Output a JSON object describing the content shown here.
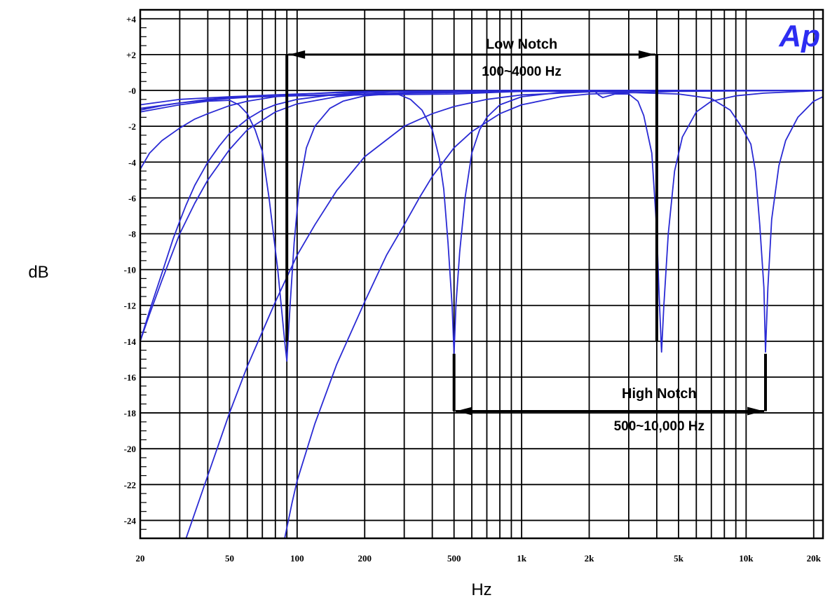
{
  "chart_data": {
    "type": "line",
    "x_scale": "log",
    "xlim": [
      20,
      22000
    ],
    "ylim": [
      -25,
      4.5
    ],
    "xlabel": "Hz",
    "ylabel": "dB",
    "x_ticks": [
      {
        "value": 20,
        "label": "20"
      },
      {
        "value": 50,
        "label": "50"
      },
      {
        "value": 100,
        "label": "100"
      },
      {
        "value": 200,
        "label": "200"
      },
      {
        "value": 500,
        "label": "500"
      },
      {
        "value": 1000,
        "label": "1k"
      },
      {
        "value": 2000,
        "label": "2k"
      },
      {
        "value": 5000,
        "label": "5k"
      },
      {
        "value": 10000,
        "label": "10k"
      },
      {
        "value": 20000,
        "label": "20k"
      }
    ],
    "y_ticks": [
      {
        "value": 4,
        "label": "+4"
      },
      {
        "value": 2,
        "label": "+2"
      },
      {
        "value": 0,
        "label": "-0"
      },
      {
        "value": -2,
        "label": "-2"
      },
      {
        "value": -4,
        "label": "-4"
      },
      {
        "value": -6,
        "label": "-6"
      },
      {
        "value": -8,
        "label": "-8"
      },
      {
        "value": -10,
        "label": "-10"
      },
      {
        "value": -12,
        "label": "-12"
      },
      {
        "value": -14,
        "label": "-14"
      },
      {
        "value": -16,
        "label": "-16"
      },
      {
        "value": -18,
        "label": "-18"
      },
      {
        "value": -20,
        "label": "-20"
      },
      {
        "value": -22,
        "label": "-22"
      },
      {
        "value": -24,
        "label": "-24"
      }
    ],
    "grid": true,
    "series_color": "#2a2ad4",
    "series": [
      {
        "points": [
          [
            20,
            -4.4
          ],
          [
            22,
            -3.5
          ],
          [
            25,
            -2.8
          ],
          [
            30,
            -2.1
          ],
          [
            35,
            -1.6
          ],
          [
            40,
            -1.3
          ],
          [
            50,
            -0.85
          ],
          [
            60,
            -0.6
          ],
          [
            80,
            -0.35
          ],
          [
            100,
            -0.22
          ],
          [
            150,
            -0.1
          ],
          [
            200,
            -0.05
          ],
          [
            500,
            -0.01
          ],
          [
            1000,
            0
          ],
          [
            22000,
            0
          ]
        ]
      },
      {
        "points": [
          [
            20,
            -14.0
          ],
          [
            22,
            -12.3
          ],
          [
            25,
            -10.2
          ],
          [
            28,
            -8.3
          ],
          [
            30,
            -7.3
          ],
          [
            32,
            -6.4
          ],
          [
            35,
            -5.3
          ],
          [
            40,
            -4.0
          ],
          [
            45,
            -3.1
          ],
          [
            50,
            -2.4
          ],
          [
            60,
            -1.6
          ],
          [
            70,
            -1.1
          ],
          [
            80,
            -0.8
          ],
          [
            100,
            -0.5
          ],
          [
            150,
            -0.22
          ],
          [
            200,
            -0.12
          ],
          [
            300,
            -0.05
          ],
          [
            500,
            -0.02
          ],
          [
            1000,
            0
          ],
          [
            22000,
            0
          ]
        ]
      },
      {
        "points": [
          [
            20,
            -1.2
          ],
          [
            30,
            -0.8
          ],
          [
            40,
            -0.6
          ],
          [
            50,
            -0.55
          ],
          [
            55,
            -0.8
          ],
          [
            60,
            -1.3
          ],
          [
            65,
            -2.2
          ],
          [
            70,
            -3.4
          ],
          [
            75,
            -6.0
          ],
          [
            82,
            -10.0
          ],
          [
            88,
            -14.0
          ],
          [
            90,
            -15.1
          ],
          [
            93,
            -12.0
          ],
          [
            97,
            -8.5
          ],
          [
            102,
            -5.5
          ],
          [
            110,
            -3.2
          ],
          [
            120,
            -2.0
          ],
          [
            140,
            -1.0
          ],
          [
            160,
            -0.6
          ],
          [
            200,
            -0.3
          ],
          [
            300,
            -0.12
          ],
          [
            500,
            -0.05
          ],
          [
            1000,
            0
          ],
          [
            22000,
            0
          ]
        ]
      },
      {
        "points": [
          [
            20,
            -0.8
          ],
          [
            30,
            -0.5
          ],
          [
            50,
            -0.35
          ],
          [
            100,
            -0.2
          ],
          [
            200,
            -0.08
          ],
          [
            280,
            -0.2
          ],
          [
            320,
            -0.5
          ],
          [
            360,
            -1.1
          ],
          [
            400,
            -2.2
          ],
          [
            430,
            -3.8
          ],
          [
            450,
            -5.5
          ],
          [
            470,
            -8.5
          ],
          [
            490,
            -12.0
          ],
          [
            500,
            -14.7
          ],
          [
            510,
            -12.0
          ],
          [
            530,
            -9.0
          ],
          [
            560,
            -6.0
          ],
          [
            600,
            -3.5
          ],
          [
            650,
            -2.2
          ],
          [
            700,
            -1.5
          ],
          [
            800,
            -0.8
          ],
          [
            1000,
            -0.35
          ],
          [
            1500,
            -0.1
          ],
          [
            2000,
            -0.03
          ],
          [
            22000,
            0
          ]
        ]
      },
      {
        "points": [
          [
            20,
            -1.0
          ],
          [
            30,
            -0.7
          ],
          [
            40,
            -0.5
          ],
          [
            50,
            -0.4
          ],
          [
            70,
            -0.35
          ],
          [
            100,
            -0.3
          ],
          [
            200,
            -0.25
          ],
          [
            500,
            -0.2
          ],
          [
            1000,
            -0.05
          ],
          [
            1500,
            0
          ],
          [
            2100,
            0
          ],
          [
            2200,
            -0.25
          ],
          [
            2300,
            -0.4
          ],
          [
            2600,
            -0.2
          ],
          [
            3000,
            -0.2
          ],
          [
            3300,
            -0.6
          ],
          [
            3500,
            -1.4
          ],
          [
            3800,
            -3.5
          ],
          [
            4000,
            -7.8
          ],
          [
            4100,
            -11.5
          ],
          [
            4200,
            -14.6
          ],
          [
            4300,
            -12.0
          ],
          [
            4500,
            -8.0
          ],
          [
            4800,
            -4.5
          ],
          [
            5200,
            -2.6
          ],
          [
            6000,
            -1.2
          ],
          [
            7000,
            -0.6
          ],
          [
            9000,
            -0.3
          ],
          [
            12000,
            -0.15
          ],
          [
            22000,
            0
          ]
        ]
      },
      {
        "points": [
          [
            20,
            -1.1
          ],
          [
            25,
            -0.85
          ],
          [
            30,
            -0.7
          ],
          [
            40,
            -0.55
          ],
          [
            50,
            -0.45
          ],
          [
            60,
            -0.38
          ],
          [
            80,
            -0.32
          ],
          [
            100,
            -0.28
          ],
          [
            200,
            -0.2
          ],
          [
            500,
            -0.12
          ],
          [
            1000,
            -0.05
          ],
          [
            2000,
            -0.05
          ],
          [
            5000,
            -0.2
          ],
          [
            7000,
            -0.45
          ],
          [
            8500,
            -1.1
          ],
          [
            9500,
            -2.0
          ],
          [
            10500,
            -3.0
          ],
          [
            11000,
            -4.5
          ],
          [
            11500,
            -7.5
          ],
          [
            12000,
            -11.0
          ],
          [
            12200,
            -14.6
          ],
          [
            12500,
            -11.0
          ],
          [
            13000,
            -7.2
          ],
          [
            14000,
            -4.2
          ],
          [
            15000,
            -2.8
          ],
          [
            17000,
            -1.5
          ],
          [
            20000,
            -0.6
          ],
          [
            22000,
            -0.35
          ]
        ]
      },
      {
        "points": [
          [
            20,
            -14.0
          ],
          [
            22,
            -12.5
          ],
          [
            25,
            -10.6
          ],
          [
            30,
            -8.0
          ],
          [
            35,
            -6.3
          ],
          [
            40,
            -5.0
          ],
          [
            50,
            -3.3
          ],
          [
            60,
            -2.2
          ],
          [
            80,
            -1.2
          ],
          [
            100,
            -0.75
          ],
          [
            150,
            -0.35
          ],
          [
            200,
            -0.2
          ],
          [
            500,
            -0.05
          ],
          [
            1000,
            0
          ],
          [
            22000,
            0
          ]
        ]
      },
      {
        "points": [
          [
            32,
            -25.0
          ],
          [
            40,
            -21.5
          ],
          [
            50,
            -18.0
          ],
          [
            60,
            -15.4
          ],
          [
            80,
            -11.8
          ],
          [
            100,
            -9.2
          ],
          [
            120,
            -7.5
          ],
          [
            150,
            -5.6
          ],
          [
            200,
            -3.7
          ],
          [
            300,
            -2.0
          ],
          [
            400,
            -1.3
          ],
          [
            500,
            -0.9
          ],
          [
            700,
            -0.5
          ],
          [
            1000,
            -0.25
          ],
          [
            2000,
            -0.08
          ],
          [
            5000,
            0
          ],
          [
            22000,
            0
          ]
        ]
      },
      {
        "points": [
          [
            88,
            -25.0
          ],
          [
            95,
            -23.0
          ],
          [
            100,
            -21.8
          ],
          [
            120,
            -18.6
          ],
          [
            150,
            -15.3
          ],
          [
            200,
            -11.8
          ],
          [
            250,
            -9.2
          ],
          [
            300,
            -7.5
          ],
          [
            350,
            -6.0
          ],
          [
            400,
            -4.8
          ],
          [
            500,
            -3.2
          ],
          [
            600,
            -2.3
          ],
          [
            800,
            -1.3
          ],
          [
            1000,
            -0.8
          ],
          [
            1500,
            -0.35
          ],
          [
            2000,
            -0.2
          ],
          [
            5000,
            -0.05
          ],
          [
            22000,
            0
          ]
        ]
      }
    ],
    "annotations": [
      {
        "text": "Low Notch",
        "x": 1000,
        "y": 2.6
      },
      {
        "text": "100~4000 Hz",
        "x": 1000,
        "y": 1.1
      },
      {
        "text": "High Notch",
        "x": 4100,
        "y": -16.9
      },
      {
        "text": "500~10,000 Hz",
        "x": 4100,
        "y": -18.7
      }
    ],
    "brackets": [
      {
        "name": "low-notch-bracket",
        "x1": 90,
        "x2": 4000,
        "y_arrow": 2.0,
        "y_end": -14.0
      },
      {
        "name": "high-notch-bracket",
        "x1": 500,
        "x2": 12200,
        "y_arrow": -17.9,
        "y_end": -14.7
      }
    ],
    "logo_text": "Ap",
    "logo_color": "#2d2df2"
  }
}
